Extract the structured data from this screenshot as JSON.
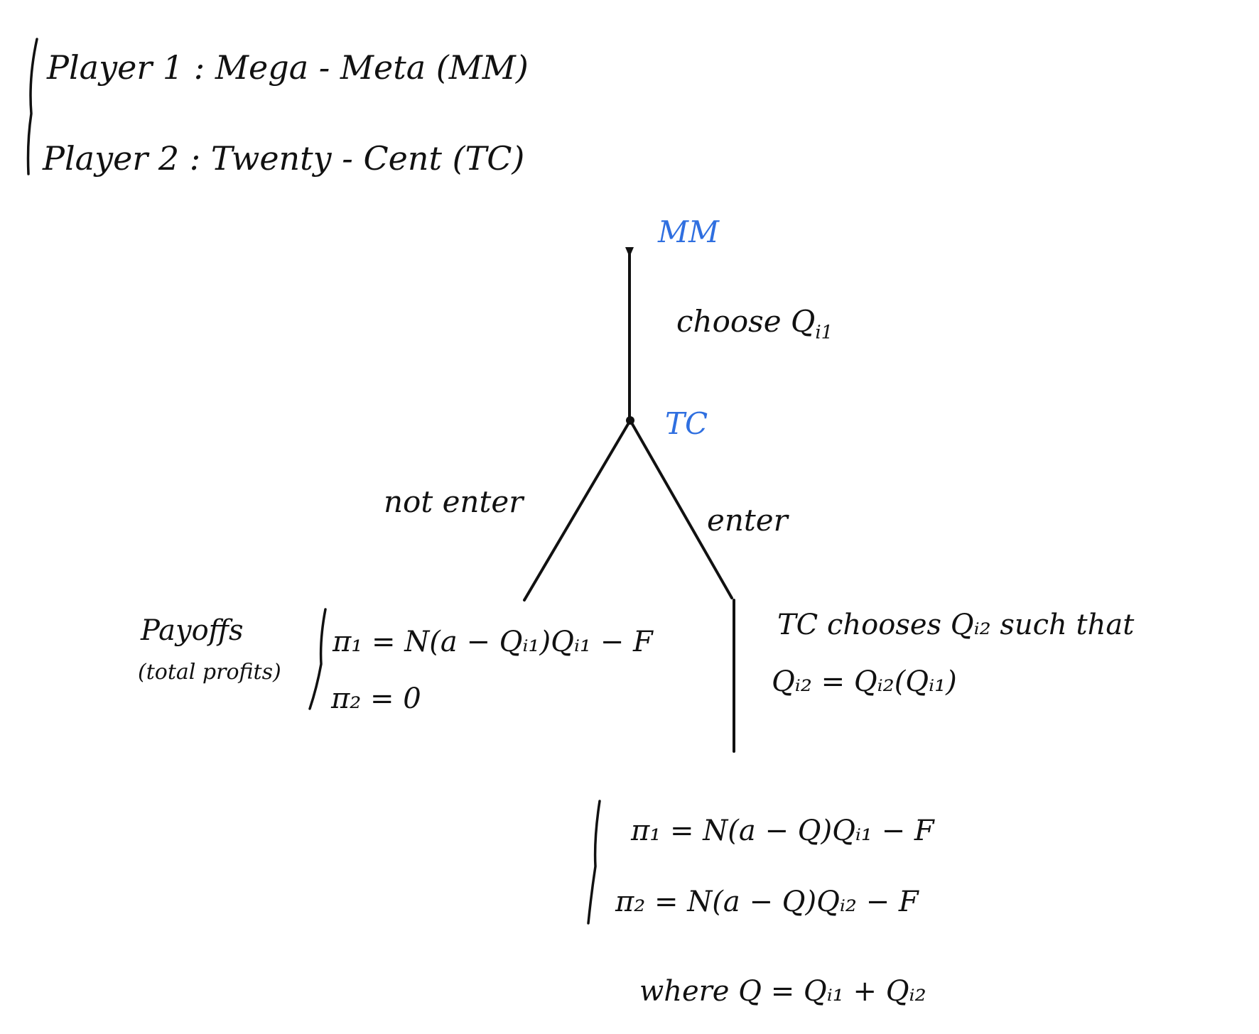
{
  "colors": {
    "ink": "#111111",
    "node_label": "#2f6fe0",
    "background": "#ffffff"
  },
  "players": {
    "p1": "Player 1 : Mega - Meta (MM)",
    "p2": "Player 2 : Twenty - Cent (TC)"
  },
  "tree": {
    "root_label": "MM",
    "root_action": "choose Q",
    "root_action_sub": "i1",
    "node2_label": "TC",
    "left_branch": "not enter",
    "right_branch": "enter"
  },
  "left_payoffs": {
    "label_line1": "Payoffs",
    "label_line2": "(total profits)",
    "pi1": "π₁ = N(a − Qᵢ₁)Qᵢ₁ − F",
    "pi2": "π₂ = 0"
  },
  "right_note": {
    "line1": "TC chooses Qᵢ₂ such that",
    "line2": "Qᵢ₂ = Qᵢ₂(Qᵢ₁)"
  },
  "right_payoffs": {
    "pi1": "π₁ = N(a − Q)Qᵢ₁ − F",
    "pi2": "π₂ = N(a − Q)Qᵢ₂ − F",
    "where": "where Q = Qᵢ₁ + Qᵢ₂"
  }
}
